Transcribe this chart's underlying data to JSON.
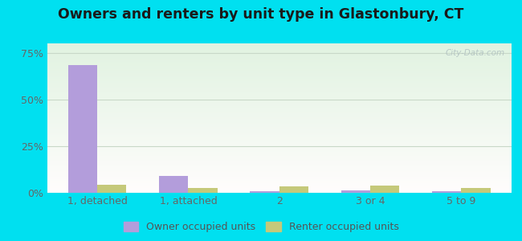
{
  "categories": [
    "1, detached",
    "1, attached",
    "2",
    "3 or 4",
    "5 to 9"
  ],
  "owner_values": [
    68.5,
    9.0,
    1.0,
    1.2,
    1.0
  ],
  "renter_values": [
    4.5,
    2.5,
    3.5,
    4.0,
    2.5
  ],
  "owner_color": "#b39ddb",
  "renter_color": "#c5c97a",
  "title": "Owners and renters by unit type in Glastonbury, CT",
  "title_fontsize": 12.5,
  "yticks": [
    0,
    25,
    50,
    75
  ],
  "ylim": [
    0,
    80
  ],
  "outer_bg": "#00e0f0",
  "bar_width": 0.32,
  "legend_owner": "Owner occupied units",
  "legend_renter": "Renter occupied units",
  "watermark": "City-Data.com",
  "grid_color": "#c8d8c8"
}
